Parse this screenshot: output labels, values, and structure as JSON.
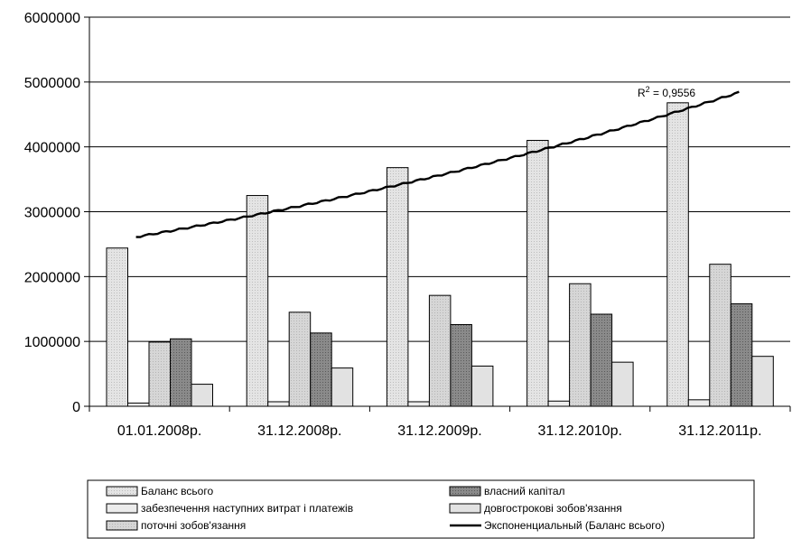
{
  "chart_data": {
    "type": "bar",
    "categories": [
      "01.01.2008р.",
      "31.12.2008р.",
      "31.12.2009р.",
      "31.12.2010р.",
      "31.12.2011р."
    ],
    "ylim": [
      0,
      6000000
    ],
    "yticks": [
      0,
      1000000,
      2000000,
      3000000,
      4000000,
      5000000,
      6000000
    ],
    "ytick_labels": [
      "0",
      "1000000",
      "2000000",
      "3000000",
      "4000000",
      "5000000",
      "6000000"
    ],
    "grid": true,
    "legend_position": "bottom",
    "series": [
      {
        "name": "Баланс всього",
        "values": [
          2440000,
          3250000,
          3680000,
          4100000,
          4680000
        ],
        "color": "#e6e6e6"
      },
      {
        "name": "забезпечення наступних витрат і платежів",
        "values": [
          50000,
          70000,
          70000,
          80000,
          100000
        ],
        "color": "#ececec"
      },
      {
        "name": "поточні зобов'язання",
        "values": [
          990000,
          1450000,
          1710000,
          1890000,
          2190000
        ],
        "color": "#d0d0d0"
      },
      {
        "name": "власний капітал",
        "values": [
          1040000,
          1130000,
          1260000,
          1420000,
          1580000
        ],
        "color": "#8c8c8c"
      },
      {
        "name": "довгострокові зобов'язання",
        "values": [
          340000,
          590000,
          620000,
          680000,
          770000
        ],
        "color": "#dadada"
      }
    ],
    "trendline": {
      "name": "Экспоненциальный (Баланс всього)",
      "type": "exponential",
      "start_value": 2610000,
      "end_value": 4840000,
      "r2_label": "R",
      "r2_sup": "2",
      "r2_value": " = 0,9556"
    },
    "legend_order": [
      0,
      3,
      1,
      4,
      2
    ]
  }
}
